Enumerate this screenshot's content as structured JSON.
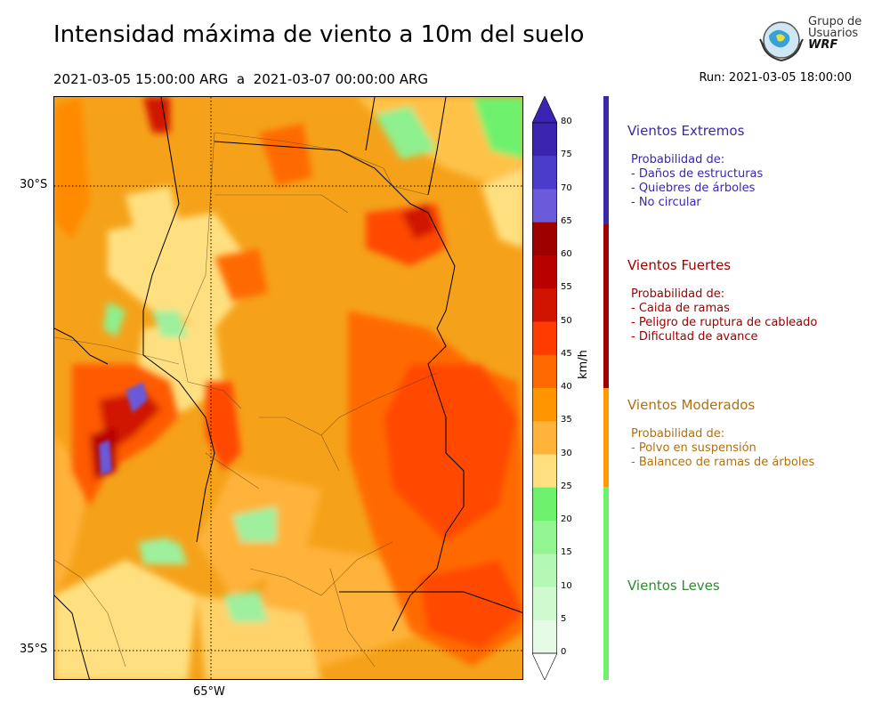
{
  "header": {
    "title": "Intensidad máxima de viento a 10m del suelo",
    "period": "2021-03-05 15:00:00 ARG  a  2021-03-07 00:00:00 ARG",
    "run": "Run: 2021-03-05 18:00:00"
  },
  "logo": {
    "line1": "Grupo de",
    "line2": "Usuarios",
    "line3": "WRF"
  },
  "map": {
    "lat_labels": [
      "30°S",
      "35°S"
    ],
    "lon_labels": [
      "65°W"
    ]
  },
  "colorbar": {
    "unit": "km/h",
    "ticks": [
      "80",
      "75",
      "70",
      "65",
      "60",
      "55",
      "50",
      "45",
      "40",
      "35",
      "30",
      "25",
      "20",
      "15",
      "10",
      "5",
      "0"
    ],
    "colors": [
      "#3b25b0",
      "#4c3ccc",
      "#6b5ad9",
      "#9e0000",
      "#b80000",
      "#d01400",
      "#ff3c00",
      "#ff6a00",
      "#ff9500",
      "#ffb33a",
      "#ffe080",
      "#6ef26e",
      "#92f592",
      "#b5f7b5",
      "#cff9cf",
      "#e6fbe6"
    ]
  },
  "legend": [
    {
      "title": "Vientos Extremos",
      "color": "#3a28a8",
      "lines": [
        "Probabilidad de:",
        "- Daños de estructuras",
        "- Quiebres de árboles",
        "- No circular"
      ]
    },
    {
      "title": "Vientos Fuertes",
      "color": "#a00000",
      "lines": [
        "Probabilidad de:",
        "- Caida de ramas",
        "- Peligro de ruptura de cableado",
        "- Dificultad de avance"
      ]
    },
    {
      "title": "Vientos Moderados",
      "color": "#b07010",
      "lines": [
        "Probabilidad de:",
        "- Polvo en suspensión",
        "- Balanceo de ramas de árboles"
      ]
    },
    {
      "title": "Vientos Leves",
      "color": "#2e8b2e",
      "lines": []
    }
  ]
}
